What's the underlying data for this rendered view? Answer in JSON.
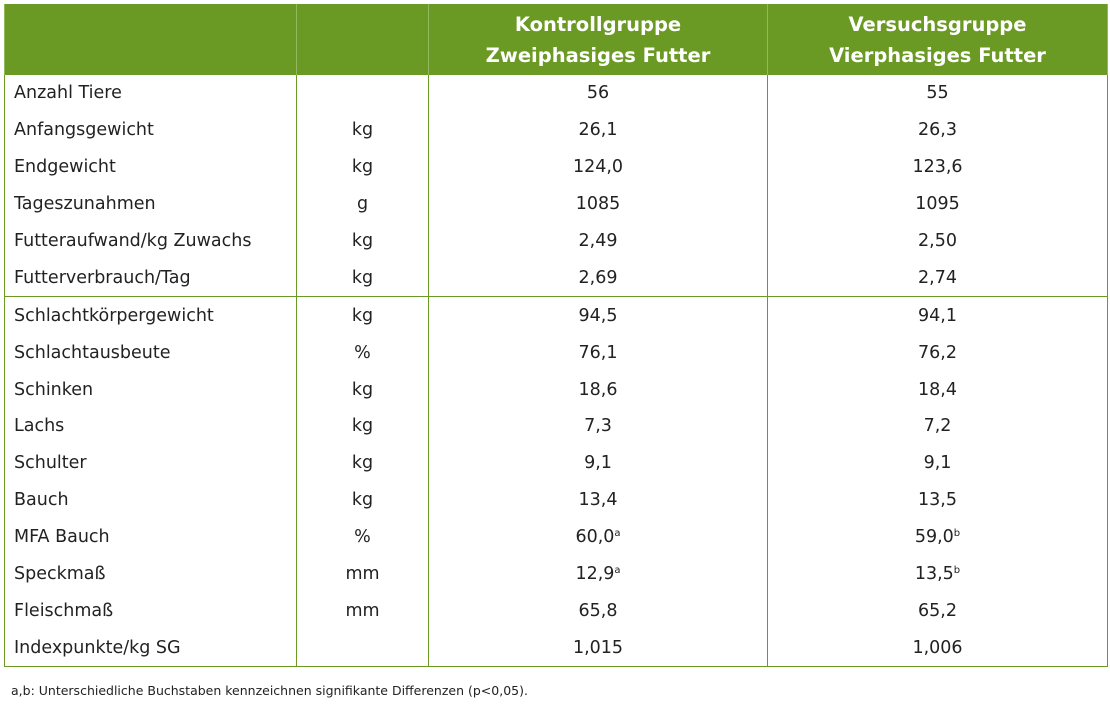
{
  "header": {
    "col3_line1": "Kontrollgruppe",
    "col3_line2": "Zweiphasiges Futter",
    "col4_line1": "Versuchsgruppe",
    "col4_line2": "Vierphasiges Futter"
  },
  "rows": [
    {
      "label": "Anzahl Tiere",
      "unit": "",
      "kontroll": "56",
      "kontroll_sup": "",
      "versuch": "55",
      "versuch_sup": ""
    },
    {
      "label": "Anfangsgewicht",
      "unit": "kg",
      "kontroll": "26,1",
      "kontroll_sup": "",
      "versuch": "26,3",
      "versuch_sup": ""
    },
    {
      "label": "Endgewicht",
      "unit": "kg",
      "kontroll": "124,0",
      "kontroll_sup": "",
      "versuch": "123,6",
      "versuch_sup": ""
    },
    {
      "label": "Tageszunahmen",
      "unit": "g",
      "kontroll": "1085",
      "kontroll_sup": "",
      "versuch": "1095",
      "versuch_sup": ""
    },
    {
      "label": "Futteraufwand/kg Zuwachs",
      "unit": "kg",
      "kontroll": "2,49",
      "kontroll_sup": "",
      "versuch": "2,50",
      "versuch_sup": ""
    },
    {
      "label": "Futterverbrauch/Tag",
      "unit": "kg",
      "kontroll": "2,69",
      "kontroll_sup": "",
      "versuch": "2,74",
      "versuch_sup": ""
    },
    {
      "label": "Schlachtkörpergewicht",
      "unit": "kg",
      "kontroll": "94,5",
      "kontroll_sup": "",
      "versuch": "94,1",
      "versuch_sup": ""
    },
    {
      "label": "Schlachtausbeute",
      "unit": "%",
      "kontroll": "76,1",
      "kontroll_sup": "",
      "versuch": "76,2",
      "versuch_sup": ""
    },
    {
      "label": "Schinken",
      "unit": "kg",
      "kontroll": "18,6",
      "kontroll_sup": "",
      "versuch": "18,4",
      "versuch_sup": ""
    },
    {
      "label": "Lachs",
      "unit": "kg",
      "kontroll": "7,3",
      "kontroll_sup": "",
      "versuch": "7,2",
      "versuch_sup": ""
    },
    {
      "label": "Schulter",
      "unit": "kg",
      "kontroll": "9,1",
      "kontroll_sup": "",
      "versuch": "9,1",
      "versuch_sup": ""
    },
    {
      "label": "Bauch",
      "unit": "kg",
      "kontroll": "13,4",
      "kontroll_sup": "",
      "versuch": "13,5",
      "versuch_sup": ""
    },
    {
      "label": "MFA Bauch",
      "unit": "%",
      "kontroll": "60,0",
      "kontroll_sup": "a",
      "versuch": "59,0",
      "versuch_sup": "b"
    },
    {
      "label": "Speckmaß",
      "unit": "mm",
      "kontroll": "12,9",
      "kontroll_sup": "a",
      "versuch": "13,5",
      "versuch_sup": "b"
    },
    {
      "label": "Fleischmaß",
      "unit": "mm",
      "kontroll": "65,8",
      "kontroll_sup": "",
      "versuch": "65,2",
      "versuch_sup": ""
    },
    {
      "label": "Indexpunkte/kg SG",
      "unit": "",
      "kontroll": "1,015",
      "kontroll_sup": "",
      "versuch": "1,006",
      "versuch_sup": ""
    }
  ],
  "footnote": "a,b: Unterschiedliche Buchstaben kennzeichnen signifikante Differenzen (p<0,05).",
  "colors": {
    "header_bg": "#6a9a23",
    "border": "#6a9a23"
  }
}
